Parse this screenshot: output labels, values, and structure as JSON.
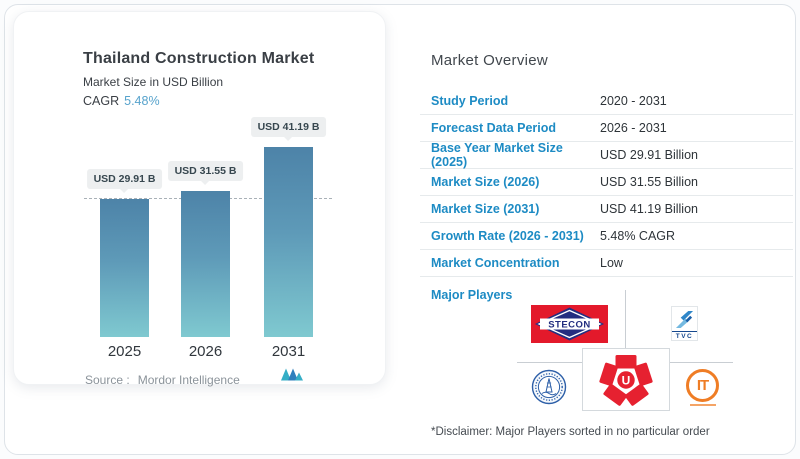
{
  "header": {
    "title": "Thailand Construction Market",
    "subtitle": "Market Size in USD Billion",
    "cagr_label": "CAGR",
    "cagr_value": "5.48%"
  },
  "chart_data": {
    "type": "bar",
    "categories": [
      "2025",
      "2026",
      "2031"
    ],
    "values": [
      29.91,
      31.55,
      41.19
    ],
    "bar_labels": [
      "USD 29.91 B",
      "USD 31.55 B",
      "USD 41.19 B"
    ],
    "title": "Thailand Construction Market",
    "xlabel": "",
    "ylabel": "Market Size in USD Billion",
    "ylim": [
      0,
      41.19
    ],
    "reference_line": 29.91,
    "grid": false,
    "legend": false,
    "bar_gradient_top": "#4d83a8",
    "bar_gradient_bottom": "#7fc9d0"
  },
  "source": {
    "label": "Source :",
    "value": "Mordor Intelligence"
  },
  "overview": {
    "heading": "Market Overview",
    "rows": [
      {
        "label": "Study Period",
        "value": "2020 - 2031"
      },
      {
        "label": "Forecast Data Period",
        "value": "2026 - 2031"
      },
      {
        "label": "Base Year Market Size (2025)",
        "value": "USD 29.91 Billion"
      },
      {
        "label": "Market Size (2026)",
        "value": "USD 31.55 Billion"
      },
      {
        "label": "Market Size (2031)",
        "value": "USD 41.19 Billion"
      },
      {
        "label": "Growth Rate (2026 - 2031)",
        "value": "5.48% CAGR"
      },
      {
        "label": "Market Concentration",
        "value": "Low"
      }
    ],
    "major_players_label": "Major Players"
  },
  "players": {
    "stecon_text": "STECON",
    "tvc_text": "TVC",
    "unique_letter": "U",
    "itd_text": "IT"
  },
  "disclaimer": "*Disclaimer: Major Players sorted in no particular order",
  "colors": {
    "label_blue": "#1d8bc4",
    "cagr_blue": "#57a3cc",
    "stecon_red": "#e3192b",
    "stecon_navy": "#232e80",
    "unique_red": "#e62130",
    "itd_orange": "#ef7d25",
    "seal_blue": "#2d5fa8",
    "mordor_teal": "#35aec6",
    "mordor_blue": "#2e7fbd"
  }
}
